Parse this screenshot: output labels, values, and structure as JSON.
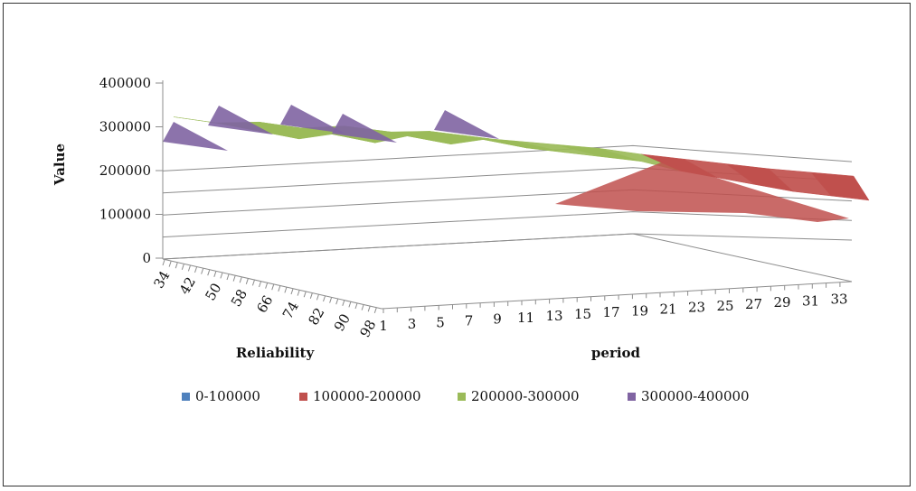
{
  "chart_data": {
    "type": "surface",
    "title": "",
    "zlabel": "Value",
    "ylabel": "Reliability",
    "xlabel": "period",
    "zlim": [
      0,
      400000
    ],
    "z_ticks": [
      "400000",
      "300000",
      "200000",
      "100000",
      "0"
    ],
    "reliability_ticks": [
      "34",
      "42",
      "50",
      "58",
      "66",
      "74",
      "82",
      "90",
      "98"
    ],
    "period_ticks": [
      "1",
      "3",
      "5",
      "7",
      "9",
      "11",
      "13",
      "15",
      "17",
      "19",
      "21",
      "23",
      "25",
      "27",
      "29",
      "31",
      "33"
    ],
    "grid": true,
    "legend_position": "bottom",
    "legend": [
      {
        "name": "0-100000",
        "color": "#4f81bd"
      },
      {
        "name": "100000-200000",
        "color": "#c0504d"
      },
      {
        "name": "200000-300000",
        "color": "#9bbb59"
      },
      {
        "name": "300000-400000",
        "color": "#8064a2"
      }
    ],
    "period_front_values": [
      {
        "period": 1,
        "value": 290000
      },
      {
        "period": 3,
        "value": 270000
      },
      {
        "period": 5,
        "value": 280000
      },
      {
        "period": 7,
        "value": 260000
      },
      {
        "period": 9,
        "value": 275000
      },
      {
        "period": 11,
        "value": 255000
      },
      {
        "period": 13,
        "value": 265000
      },
      {
        "period": 15,
        "value": 245000
      },
      {
        "period": 17,
        "value": 235000
      },
      {
        "period": 19,
        "value": 225000
      },
      {
        "period": 21,
        "value": 215000
      },
      {
        "period": 23,
        "value": 195000
      },
      {
        "period": 25,
        "value": 180000
      },
      {
        "period": 27,
        "value": 165000
      },
      {
        "period": 29,
        "value": 150000
      },
      {
        "period": 31,
        "value": 140000
      },
      {
        "period": 33,
        "value": 130000
      }
    ]
  }
}
